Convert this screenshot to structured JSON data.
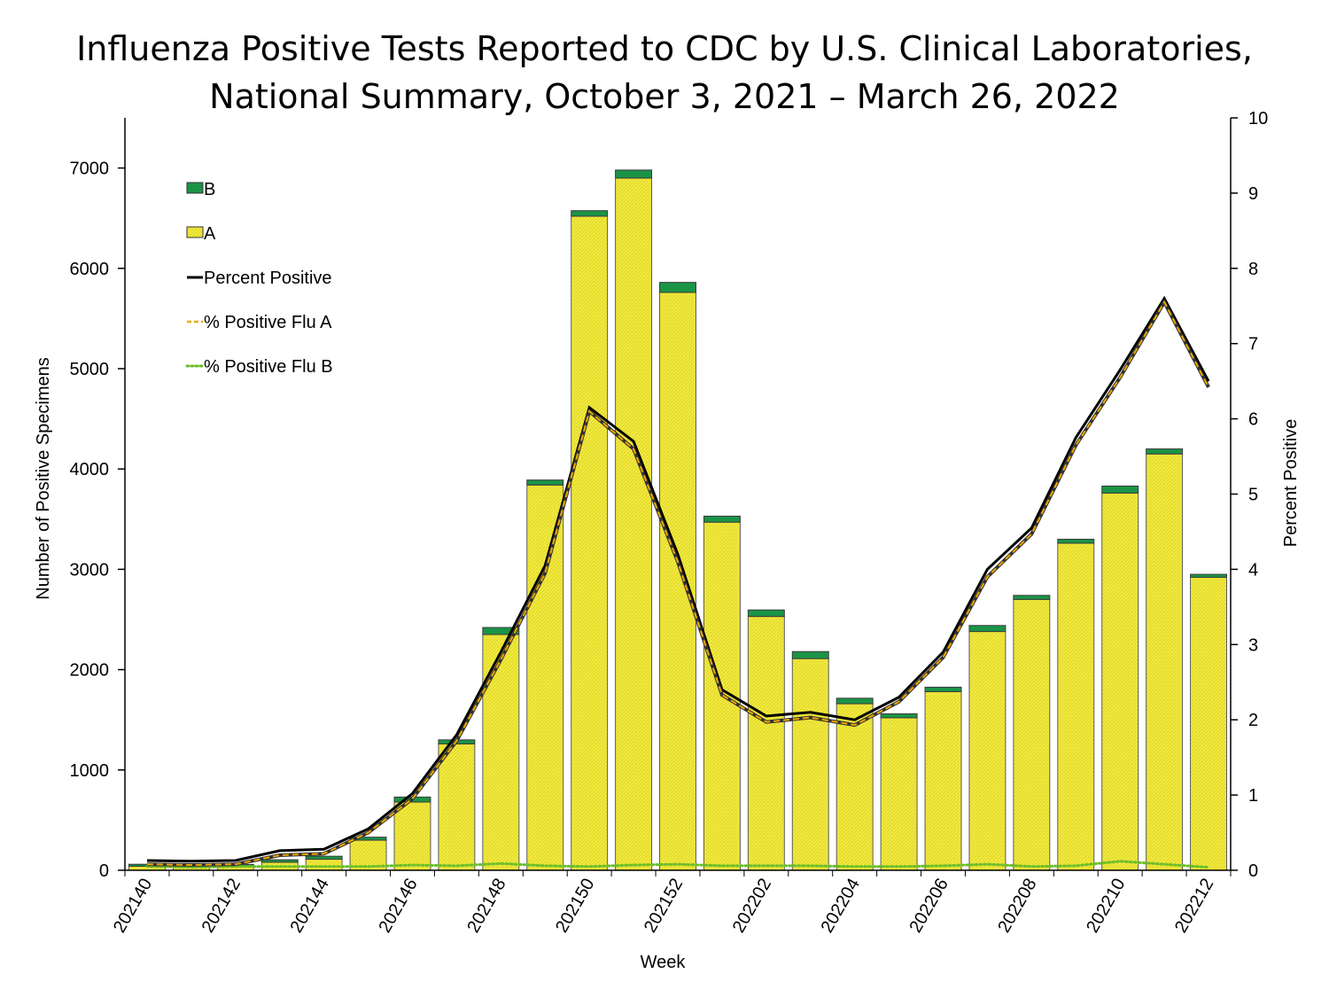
{
  "chart_data": {
    "type": "bar",
    "title_lines": [
      "Influenza Positive Tests Reported to CDC by U.S. Clinical Laboratories,",
      "National Summary, October 3, 2021 – March 26, 2022"
    ],
    "xlabel": "Week",
    "ylabel": "Number of Positive Specimens",
    "y2label": "Percent Positive",
    "ylim": [
      0,
      7500
    ],
    "y2lim": [
      0,
      10
    ],
    "y_ticks": [
      0,
      1000,
      2000,
      3000,
      4000,
      5000,
      6000,
      7000
    ],
    "y2_ticks": [
      0,
      1,
      2,
      3,
      4,
      5,
      6,
      7,
      8,
      9,
      10
    ],
    "categories": [
      "202140",
      "202141",
      "202142",
      "202143",
      "202144",
      "202145",
      "202146",
      "202147",
      "202148",
      "202149",
      "202150",
      "202151",
      "202152",
      "202201",
      "202202",
      "202203",
      "202204",
      "202205",
      "202206",
      "202207",
      "202208",
      "202209",
      "202210",
      "202211",
      "202212"
    ],
    "x_tick_labels": [
      "202140",
      "",
      "202142",
      "",
      "202144",
      "",
      "202146",
      "",
      "202148",
      "",
      "202150",
      "",
      "202152",
      "",
      "202202",
      "",
      "202204",
      "",
      "202206",
      "",
      "202208",
      "",
      "202210",
      "",
      "202212"
    ],
    "colors": {
      "A": "#f2ea3c",
      "B": "#1b9447",
      "percent_positive": "#000000",
      "pct_flu_a": "#f0a800",
      "pct_flu_b": "#6dbf2a"
    },
    "series": [
      {
        "name": "B",
        "kind": "stacked-bar",
        "values": [
          20,
          15,
          18,
          25,
          30,
          30,
          50,
          40,
          70,
          50,
          55,
          80,
          100,
          60,
          65,
          70,
          55,
          40,
          45,
          60,
          40,
          40,
          70,
          50,
          30
        ]
      },
      {
        "name": "A",
        "kind": "stacked-bar",
        "values": [
          40,
          35,
          40,
          80,
          110,
          300,
          680,
          1260,
          2350,
          3840,
          6520,
          6900,
          5760,
          3470,
          2530,
          2110,
          1660,
          1520,
          1780,
          2380,
          2700,
          3260,
          3760,
          4150,
          2920
        ]
      },
      {
        "name": "Percent Positive",
        "kind": "line",
        "axis": "right",
        "values": [
          0.13,
          0.12,
          0.13,
          0.26,
          0.28,
          0.55,
          1.02,
          1.8,
          2.9,
          4.05,
          6.15,
          5.7,
          4.2,
          2.4,
          2.05,
          2.1,
          2.0,
          2.3,
          2.9,
          4.0,
          4.55,
          5.75,
          6.65,
          7.6,
          6.5
        ]
      },
      {
        "name": "% Positive Flu A",
        "kind": "line",
        "style": "dashed",
        "axis": "right",
        "values": [
          0.08,
          0.07,
          0.08,
          0.2,
          0.22,
          0.5,
          0.95,
          1.72,
          2.8,
          3.95,
          6.1,
          5.6,
          4.1,
          2.33,
          1.97,
          2.03,
          1.93,
          2.24,
          2.83,
          3.9,
          4.47,
          5.65,
          6.55,
          7.55,
          6.42
        ]
      },
      {
        "name": "% Positive Flu B",
        "kind": "line",
        "style": "dotted",
        "axis": "right",
        "values": [
          0.05,
          0.04,
          0.05,
          0.05,
          0.05,
          0.05,
          0.07,
          0.06,
          0.09,
          0.06,
          0.05,
          0.07,
          0.08,
          0.06,
          0.06,
          0.06,
          0.05,
          0.05,
          0.06,
          0.08,
          0.05,
          0.06,
          0.12,
          0.08,
          0.04
        ]
      }
    ],
    "legend": {
      "position": "top-left",
      "entries": [
        "B",
        "A",
        "Percent Positive",
        "% Positive Flu A",
        "% Positive Flu B"
      ]
    }
  }
}
